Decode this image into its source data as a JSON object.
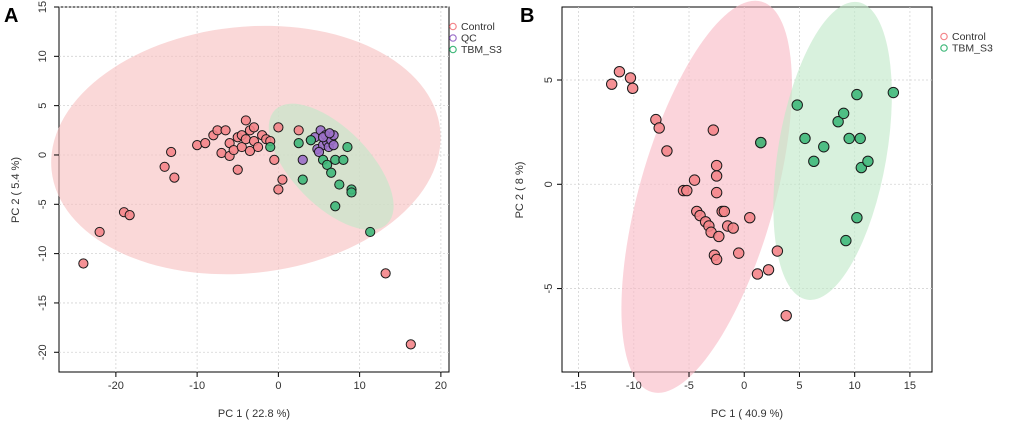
{
  "colors": {
    "Control": "#f4858a",
    "QC": "#9b6fc9",
    "TBM_S3": "#3fb87a",
    "ellipse_Control": "#f7c0c0",
    "ellipse_TBM_S3": "#c0e8c8",
    "ellipse_Control_B": "#f9b9c5"
  },
  "chart_data": [
    {
      "type": "scatter",
      "panel_label": "A",
      "xlabel": "PC 1 ( 22.8 %)",
      "ylabel": "PC 2 ( 5.4 %)",
      "xlim": [
        -27,
        21
      ],
      "ylim": [
        -22,
        15
      ],
      "xticks": [
        -20,
        -10,
        0,
        10,
        20
      ],
      "yticks": [
        15,
        10,
        5,
        0,
        -5,
        -10,
        -15,
        -20
      ],
      "grid": true,
      "legend": {
        "position": "top-right",
        "entries": [
          "Control",
          "QC",
          "TBM_S3"
        ]
      },
      "ellipses": [
        {
          "group": "Control",
          "cx": -4,
          "cy": 0.5,
          "rx": 24,
          "ry": 12.5,
          "angle": 5
        },
        {
          "group": "TBM_S3",
          "cx": 6.5,
          "cy": -1.2,
          "rx": 9,
          "ry": 4.2,
          "angle": -40
        }
      ],
      "series": [
        {
          "name": "Control",
          "points": [
            [
              -24,
              -11
            ],
            [
              -22,
              -7.8
            ],
            [
              -19,
              -5.8
            ],
            [
              -18.3,
              -6.1
            ],
            [
              -14,
              -1.2
            ],
            [
              -13.2,
              0.3
            ],
            [
              -12.8,
              -2.3
            ],
            [
              -10,
              1
            ],
            [
              -9,
              1.2
            ],
            [
              -8,
              2
            ],
            [
              -7.5,
              2.5
            ],
            [
              -7,
              0.2
            ],
            [
              -6.5,
              2.5
            ],
            [
              -6,
              1.2
            ],
            [
              -6,
              -0.1
            ],
            [
              -5.5,
              0.5
            ],
            [
              -5,
              1.8
            ],
            [
              -5,
              -1.5
            ],
            [
              -4.5,
              2
            ],
            [
              -4.5,
              0.8
            ],
            [
              -4,
              1.6
            ],
            [
              -4,
              3.5
            ],
            [
              -3.5,
              2.5
            ],
            [
              -3.5,
              0.4
            ],
            [
              -3,
              2.8
            ],
            [
              -3,
              1.4
            ],
            [
              -2.5,
              0.8
            ],
            [
              -2,
              2
            ],
            [
              -1.5,
              1.6
            ],
            [
              -1,
              1.4
            ],
            [
              -0.5,
              -0.5
            ],
            [
              0,
              2.8
            ],
            [
              0,
              -3.5
            ],
            [
              0.5,
              -2.5
            ],
            [
              2.5,
              2.5
            ],
            [
              13.2,
              -12
            ],
            [
              16.3,
              -19.2
            ]
          ]
        },
        {
          "name": "QC",
          "points": [
            [
              3,
              -0.5
            ],
            [
              4.5,
              1.8
            ],
            [
              4.8,
              0.6
            ],
            [
              5.2,
              2.5
            ],
            [
              5.5,
              1
            ],
            [
              5.8,
              2
            ],
            [
              6,
              1.3
            ],
            [
              6.2,
              0.8
            ],
            [
              6.5,
              1.5
            ],
            [
              6.8,
              2
            ],
            [
              5,
              0.3
            ],
            [
              4,
              1.5
            ],
            [
              5.5,
              1.8
            ],
            [
              6.3,
              2.2
            ],
            [
              6.8,
              1
            ]
          ]
        },
        {
          "name": "TBM_S3",
          "points": [
            [
              -1,
              0.8
            ],
            [
              2.5,
              1.2
            ],
            [
              3,
              -2.5
            ],
            [
              4,
              1.5
            ],
            [
              5.5,
              -0.5
            ],
            [
              6,
              -1
            ],
            [
              6.5,
              -1.8
            ],
            [
              7,
              -0.5
            ],
            [
              7.5,
              -3
            ],
            [
              8,
              -0.5
            ],
            [
              8.5,
              0.8
            ],
            [
              9,
              -3.5
            ],
            [
              9,
              -3.8
            ],
            [
              7,
              -5.2
            ],
            [
              11.3,
              -7.8
            ]
          ]
        }
      ]
    },
    {
      "type": "scatter",
      "panel_label": "B",
      "xlabel": "PC 1 ( 40.9 %)",
      "ylabel": "PC 2 ( 8 %)",
      "xlim": [
        -16.5,
        17
      ],
      "ylim": [
        -9,
        8.5
      ],
      "xticks": [
        -15,
        -10,
        -5,
        0,
        5,
        10,
        15
      ],
      "yticks": [
        5,
        0,
        -5
      ],
      "grid": true,
      "legend": {
        "position": "top-right",
        "entries": [
          "Control",
          "TBM_S3"
        ]
      },
      "ellipses": [
        {
          "group": "Control",
          "cx": -3.4,
          "cy": -0.6,
          "rx": 10.6,
          "ry": 4.9,
          "angle": 62
        },
        {
          "group": "TBM_S3",
          "cx": 8,
          "cy": 1.6,
          "rx": 7.5,
          "ry": 4.4,
          "angle": 72
        }
      ],
      "series": [
        {
          "name": "Control",
          "points": [
            [
              -12,
              4.8
            ],
            [
              -11.3,
              5.4
            ],
            [
              -10.3,
              5.1
            ],
            [
              -10.1,
              4.6
            ],
            [
              -8,
              3.1
            ],
            [
              -7.7,
              2.7
            ],
            [
              -7,
              1.6
            ],
            [
              -5.5,
              -0.3
            ],
            [
              -5.2,
              -0.3
            ],
            [
              -4.5,
              0.2
            ],
            [
              -4.3,
              -1.3
            ],
            [
              -4,
              -1.5
            ],
            [
              -3.5,
              -1.8
            ],
            [
              -3.2,
              -2
            ],
            [
              -3,
              -2.3
            ],
            [
              -2.8,
              2.6
            ],
            [
              -2.5,
              0.9
            ],
            [
              -2.5,
              0.4
            ],
            [
              -2.5,
              -0.4
            ],
            [
              -2,
              -1.3
            ],
            [
              -2.3,
              -2.5
            ],
            [
              -1.8,
              -1.3
            ],
            [
              -2.7,
              -3.4
            ],
            [
              -2.5,
              -3.6
            ],
            [
              -1.5,
              -2
            ],
            [
              -1,
              -2.1
            ],
            [
              -0.5,
              -3.3
            ],
            [
              0.5,
              -1.6
            ],
            [
              1.2,
              -4.3
            ],
            [
              2.2,
              -4.1
            ],
            [
              3,
              -3.2
            ],
            [
              3.8,
              -6.3
            ],
            [
              1.5,
              2
            ]
          ]
        },
        {
          "name": "TBM_S3",
          "points": [
            [
              1.5,
              2
            ],
            [
              4.8,
              3.8
            ],
            [
              5.5,
              2.2
            ],
            [
              6.3,
              1.1
            ],
            [
              7.2,
              1.8
            ],
            [
              8.5,
              3
            ],
            [
              9,
              3.4
            ],
            [
              9.5,
              2.2
            ],
            [
              10.2,
              4.3
            ],
            [
              10.5,
              2.2
            ],
            [
              10.6,
              0.8
            ],
            [
              11.2,
              1.1
            ],
            [
              13.5,
              4.4
            ],
            [
              10.2,
              -1.6
            ],
            [
              9.2,
              -2.7
            ]
          ]
        }
      ]
    }
  ]
}
